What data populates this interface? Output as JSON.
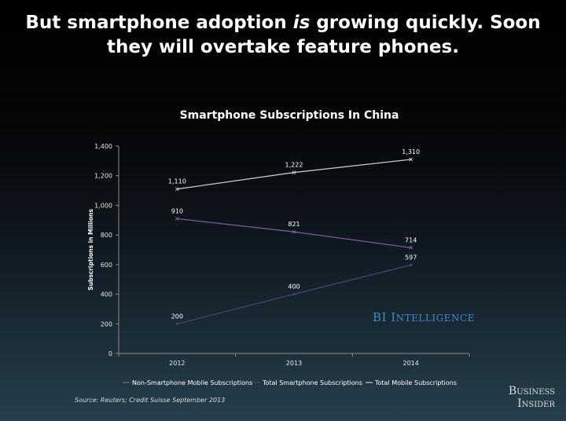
{
  "headline": {
    "part1": "But smartphone adoption ",
    "emph": "is",
    "part2": " growing quickly. Soon",
    "line2": "they will overtake feature phones."
  },
  "chart_data": {
    "type": "line",
    "title": "Smartphone Subscriptions In China",
    "ylabel": "Subscriptions in Millions",
    "xlabel": "",
    "categories": [
      "2012",
      "2013",
      "2014"
    ],
    "ylim": [
      0,
      1400
    ],
    "yticks": [
      0,
      200,
      400,
      600,
      800,
      1000,
      1200,
      1400
    ],
    "ytick_labels": [
      "0",
      "200",
      "400",
      "600",
      "800",
      "1,000",
      "1,200",
      "1,400"
    ],
    "grid": false,
    "legend_position": "bottom",
    "series": [
      {
        "name": "Non-Smartphone Mobile Subscriptions",
        "values": [
          910,
          821,
          714
        ],
        "labels": [
          "910",
          "821",
          "714"
        ],
        "color": "#7a5a9a"
      },
      {
        "name": "Total Smartphone Subscriptions",
        "values": [
          200,
          400,
          597
        ],
        "labels": [
          "200",
          "400",
          "597"
        ],
        "color": "#4a4070"
      },
      {
        "name": "Total Mobile Subscriptions",
        "values": [
          1110,
          1222,
          1310
        ],
        "labels": [
          "1,110",
          "1,222",
          "1,310"
        ],
        "color": "#c4c4d4"
      }
    ]
  },
  "branding": {
    "bi_big1": "BI",
    "bi_big2": "I",
    "bi_small": "NTELLIGENCE",
    "business": "Business",
    "insider": "Insider"
  },
  "source": "Source: Reuters; Credit Suisse September 2013"
}
